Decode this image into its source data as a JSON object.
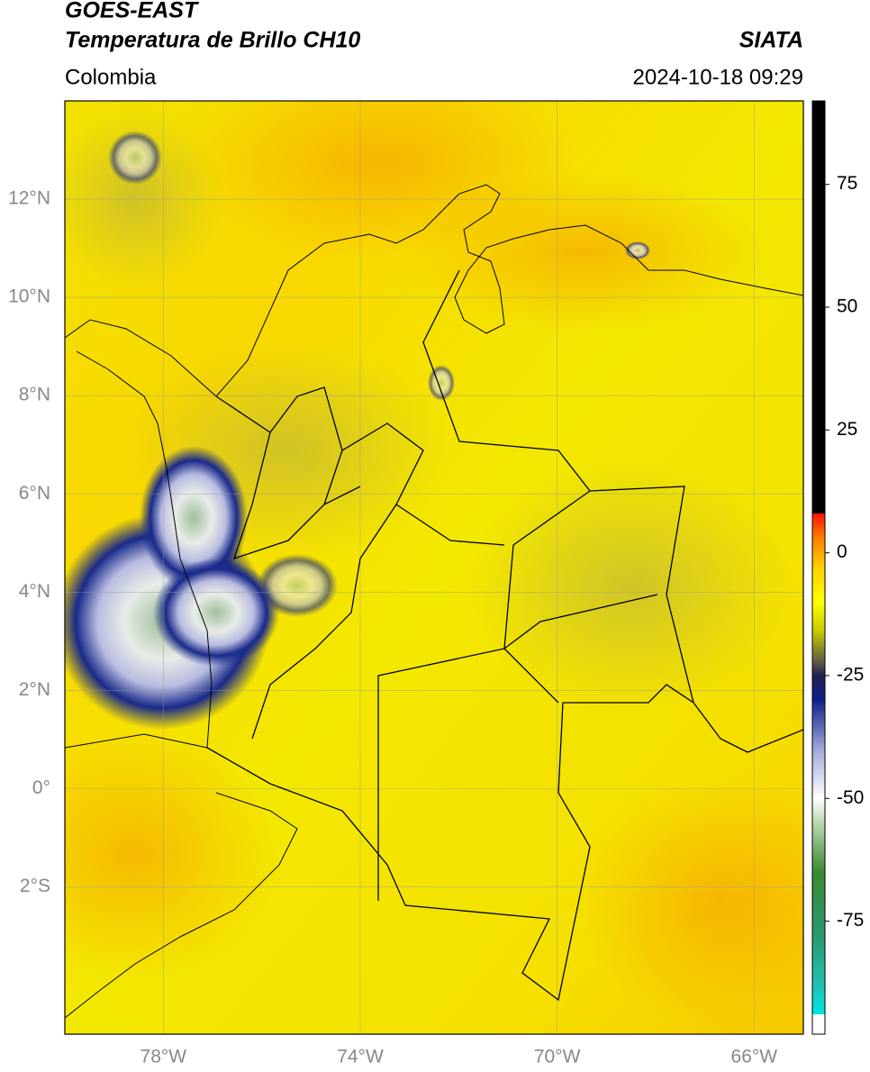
{
  "header": {
    "title": "GOES-EAST",
    "subtitle": "Temperatura de Brillo CH10",
    "source": "SIATA",
    "region": "Colombia",
    "datetime": "2024-10-18 09:29"
  },
  "chart_data": {
    "type": "map",
    "xlim": [
      -80,
      -65
    ],
    "ylim": [
      -5,
      14
    ],
    "grid": true,
    "xticks": [
      {
        "value": -78,
        "label": "78°W"
      },
      {
        "value": -74,
        "label": "74°W"
      },
      {
        "value": -70,
        "label": "70°W"
      },
      {
        "value": -66,
        "label": "66°W"
      }
    ],
    "yticks": [
      {
        "value": 12,
        "label": "12°N"
      },
      {
        "value": 10,
        "label": "10°N"
      },
      {
        "value": 8,
        "label": "8°N"
      },
      {
        "value": 6,
        "label": "6°N"
      },
      {
        "value": 4,
        "label": "4°N"
      },
      {
        "value": 2,
        "label": "2°N"
      },
      {
        "value": 0,
        "label": "0°"
      },
      {
        "value": -2,
        "label": "2°S"
      }
    ],
    "colorbar": {
      "lim": [
        -98,
        92
      ],
      "ticks": [
        75,
        50,
        25,
        0,
        -25,
        -50,
        -75
      ],
      "stops": [
        {
          "value": -98,
          "color": "#ffffff"
        },
        {
          "value": -94,
          "color": "#ffffff"
        },
        {
          "value": -94,
          "color": "#00e5e5"
        },
        {
          "value": -88,
          "color": "#20c0b0"
        },
        {
          "value": -78,
          "color": "#2a9a70"
        },
        {
          "value": -65,
          "color": "#3a8a30"
        },
        {
          "value": -55,
          "color": "#b8d8b0"
        },
        {
          "value": -50,
          "color": "#ffffff"
        },
        {
          "value": -40,
          "color": "#a0a8d8"
        },
        {
          "value": -30,
          "color": "#10208a"
        },
        {
          "value": -25,
          "color": "#202050"
        },
        {
          "value": -22,
          "color": "#606040"
        },
        {
          "value": -16,
          "color": "#c8c800"
        },
        {
          "value": -10,
          "color": "#ffff00"
        },
        {
          "value": -3,
          "color": "#ffd000"
        },
        {
          "value": 3,
          "color": "#ff8000"
        },
        {
          "value": 8,
          "color": "#ff1000"
        },
        {
          "value": 8,
          "color": "#000000"
        },
        {
          "value": 92,
          "color": "#000000"
        }
      ]
    }
  }
}
